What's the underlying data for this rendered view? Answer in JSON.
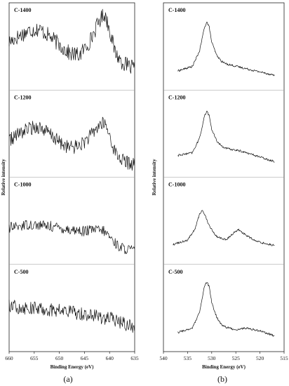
{
  "figure": {
    "captions": [
      "(a)",
      "(b)"
    ]
  },
  "chart_data": [
    {
      "type": "line",
      "ylabel": "Relative intensity",
      "xlabel": "Binding Energy (eV)",
      "x_reversed": true,
      "xlim": [
        660,
        635
      ],
      "xticks": [
        660,
        655,
        650,
        645,
        640,
        635
      ],
      "series": [
        {
          "name": "C-1400",
          "noise": 0.09,
          "x": [
            660,
            658,
            656,
            654,
            652,
            650,
            648,
            646,
            644,
            642,
            641,
            640,
            639,
            638,
            637,
            636,
            635
          ],
          "y": [
            0.55,
            0.62,
            0.68,
            0.7,
            0.62,
            0.52,
            0.42,
            0.4,
            0.55,
            0.8,
            0.88,
            0.7,
            0.45,
            0.35,
            0.3,
            0.26,
            0.25
          ]
        },
        {
          "name": "C-1200",
          "noise": 0.08,
          "x": [
            660,
            658,
            656,
            654,
            652,
            650,
            648,
            646,
            644,
            642,
            641,
            640,
            639,
            638,
            637,
            636,
            635
          ],
          "y": [
            0.42,
            0.5,
            0.56,
            0.58,
            0.5,
            0.4,
            0.34,
            0.36,
            0.46,
            0.6,
            0.62,
            0.48,
            0.3,
            0.22,
            0.18,
            0.16,
            0.15
          ]
        },
        {
          "name": "C-1000",
          "noise": 0.06,
          "x": [
            660,
            656,
            652,
            648,
            645,
            643,
            641,
            640,
            639,
            638,
            637,
            636,
            635
          ],
          "y": [
            0.42,
            0.46,
            0.44,
            0.4,
            0.38,
            0.4,
            0.38,
            0.32,
            0.25,
            0.2,
            0.18,
            0.17,
            0.16
          ]
        },
        {
          "name": "C-500",
          "noise": 0.08,
          "x": [
            660,
            656,
            652,
            648,
            644,
            640,
            638,
            636,
            635
          ],
          "y": [
            0.52,
            0.5,
            0.48,
            0.46,
            0.42,
            0.38,
            0.34,
            0.3,
            0.28
          ]
        }
      ]
    },
    {
      "type": "line",
      "ylabel": "Relative intensity",
      "xlabel": "Binding Energy (eV)",
      "x_reversed": true,
      "xlim": [
        540,
        515
      ],
      "xticks": [
        540,
        535,
        530,
        525,
        520,
        515
      ],
      "series": [
        {
          "name": "C-1400",
          "noise": 0.012,
          "x": [
            537,
            534,
            532.5,
            531.5,
            531,
            530.5,
            530,
            529,
            528,
            527,
            524,
            521,
            517
          ],
          "y": [
            0.22,
            0.27,
            0.45,
            0.72,
            0.78,
            0.72,
            0.55,
            0.4,
            0.33,
            0.3,
            0.26,
            0.22,
            0.17
          ]
        },
        {
          "name": "C-1200",
          "noise": 0.012,
          "x": [
            537,
            534,
            532.5,
            531.5,
            531,
            530.5,
            530,
            529,
            528,
            527,
            524,
            521,
            517
          ],
          "y": [
            0.25,
            0.28,
            0.45,
            0.7,
            0.76,
            0.7,
            0.55,
            0.42,
            0.36,
            0.33,
            0.3,
            0.25,
            0.18
          ]
        },
        {
          "name": "C-1000",
          "noise": 0.012,
          "x": [
            538,
            535,
            533.5,
            532.5,
            532,
            531.5,
            530.5,
            529,
            527,
            525.5,
            524.5,
            523,
            521,
            519,
            517
          ],
          "y": [
            0.23,
            0.28,
            0.4,
            0.58,
            0.62,
            0.58,
            0.44,
            0.32,
            0.28,
            0.36,
            0.4,
            0.34,
            0.27,
            0.24,
            0.22
          ]
        },
        {
          "name": "C-500",
          "noise": 0.012,
          "x": [
            537,
            534,
            532.5,
            531.5,
            531,
            530.5,
            530,
            529,
            528,
            527,
            525,
            523,
            520,
            517
          ],
          "y": [
            0.22,
            0.27,
            0.45,
            0.75,
            0.8,
            0.74,
            0.56,
            0.4,
            0.31,
            0.28,
            0.25,
            0.27,
            0.24,
            0.18
          ]
        }
      ]
    }
  ]
}
